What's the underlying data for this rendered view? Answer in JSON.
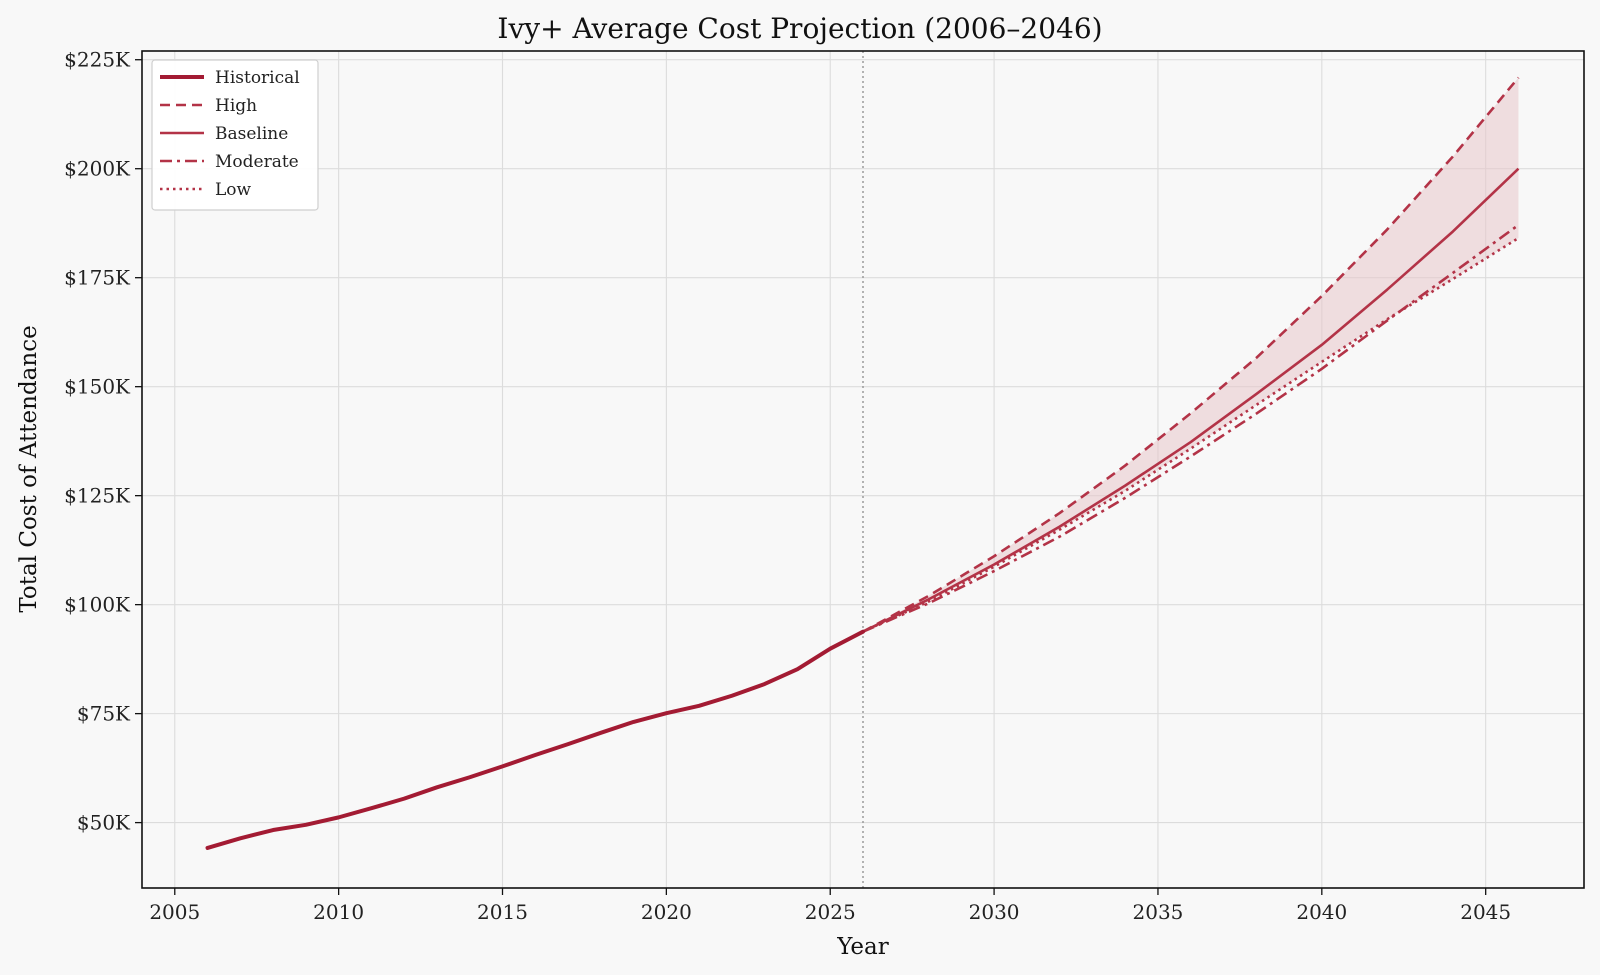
{
  "colors": {
    "historical": "#A31B33",
    "projection": "#B33347",
    "band_fill": "#E7C6CB",
    "grid": "#dcdcdc",
    "axes": "#111111",
    "background": "#f8f8f8"
  },
  "chart_data": {
    "type": "line",
    "title": "Ivy+ Average Cost Projection (2006–2046)",
    "xlabel": "Year",
    "ylabel": "Total Cost of Attendance",
    "xlim": [
      2004,
      2048
    ],
    "ylim": [
      35000,
      227000
    ],
    "x_ticks": [
      2005,
      2010,
      2015,
      2020,
      2025,
      2030,
      2035,
      2040,
      2045
    ],
    "x_tick_labels": [
      "2005",
      "2010",
      "2015",
      "2020",
      "2025",
      "2030",
      "2035",
      "2040",
      "2045"
    ],
    "y_ticks": [
      50000,
      75000,
      100000,
      125000,
      150000,
      175000,
      200000,
      225000
    ],
    "y_tick_labels": [
      "$50K",
      "$75K",
      "$100K",
      "$125K",
      "$150K",
      "$175K",
      "$200K",
      "$225K"
    ],
    "grid": true,
    "legend_position": "top-left",
    "reference_line_x": 2026,
    "band": {
      "lower_series": "Low",
      "upper_series": "High"
    },
    "series": [
      {
        "name": "Historical",
        "style": "solid",
        "x": [
          2006,
          2007,
          2008,
          2009,
          2010,
          2011,
          2012,
          2013,
          2014,
          2015,
          2016,
          2017,
          2018,
          2019,
          2020,
          2021,
          2022,
          2023,
          2024,
          2025,
          2026
        ],
        "values": [
          44200,
          46400,
          48300,
          49500,
          51200,
          53300,
          55500,
          58100,
          60400,
          62900,
          65500,
          68000,
          70600,
          73100,
          75100,
          76800,
          79100,
          81800,
          85200,
          89900,
          93800
        ]
      },
      {
        "name": "High",
        "style": "dashed",
        "x": [
          2026,
          2028,
          2030,
          2032,
          2034,
          2036,
          2038,
          2040,
          2042,
          2044,
          2046
        ],
        "values": [
          93800,
          102000,
          111100,
          121000,
          131900,
          143900,
          156600,
          170800,
          186100,
          202800,
          220900
        ]
      },
      {
        "name": "Baseline",
        "style": "solid",
        "x": [
          2026,
          2028,
          2030,
          2032,
          2034,
          2036,
          2038,
          2040,
          2042,
          2044,
          2046
        ],
        "values": [
          93800,
          101200,
          109200,
          117900,
          127300,
          137300,
          148300,
          159600,
          172300,
          185600,
          200000
        ]
      },
      {
        "name": "Moderate",
        "style": "dashdot",
        "x": [
          2026,
          2028,
          2030,
          2032,
          2034,
          2036,
          2038,
          2040,
          2042,
          2044,
          2046
        ],
        "values": [
          93800,
          100300,
          107700,
          115600,
          124500,
          134000,
          143800,
          154100,
          165200,
          176100,
          187100
        ]
      },
      {
        "name": "Low",
        "style": "dotted",
        "x": [
          2026,
          2028,
          2030,
          2032,
          2034,
          2036,
          2038,
          2040,
          2042,
          2044,
          2046
        ],
        "values": [
          93800,
          100700,
          108700,
          117200,
          126100,
          135800,
          145800,
          155700,
          165500,
          174700,
          184100
        ]
      }
    ]
  }
}
